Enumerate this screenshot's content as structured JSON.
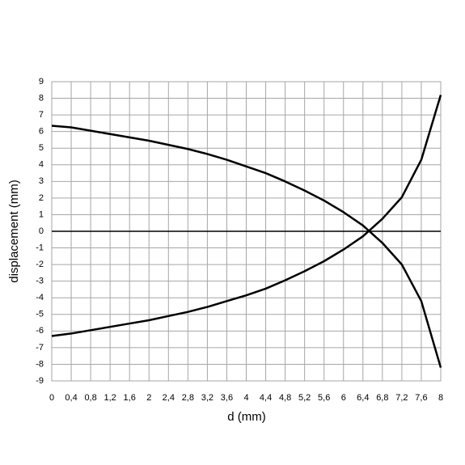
{
  "chart_data": {
    "type": "line",
    "xlabel": "d (mm)",
    "ylabel": "displacement (mm)",
    "x": [
      0,
      0.4,
      0.8,
      1.2,
      1.6,
      2,
      2.4,
      2.8,
      3.2,
      3.6,
      4,
      4.4,
      4.8,
      5.2,
      5.6,
      6,
      6.4,
      6.8,
      7.2,
      7.6,
      8
    ],
    "series": [
      {
        "color": "#000000",
        "values": [
          6.35,
          6.25,
          6.05,
          5.85,
          5.65,
          5.45,
          5.2,
          4.95,
          4.65,
          4.3,
          3.9,
          3.5,
          3.0,
          2.45,
          1.85,
          1.15,
          0.35,
          -0.7,
          -2.0,
          -4.2,
          -8.2
        ]
      },
      {
        "color": "#000000",
        "values": [
          -6.3,
          -6.15,
          -5.95,
          -5.75,
          -5.55,
          -5.35,
          -5.1,
          -4.85,
          -4.55,
          -4.2,
          -3.85,
          -3.45,
          -2.95,
          -2.4,
          -1.8,
          -1.1,
          -0.3,
          0.75,
          2.05,
          4.3,
          8.2
        ]
      }
    ],
    "xlim": [
      0,
      8
    ],
    "xticks": [
      0,
      {
        "value": 0.4,
        "label": "0,4"
      },
      {
        "value": 0.8,
        "label": "0,8"
      },
      {
        "value": 1.2,
        "label": "1,2"
      },
      {
        "value": 1.6,
        "label": "1,6"
      },
      2,
      {
        "value": 2.4,
        "label": "2,4"
      },
      {
        "value": 2.8,
        "label": "2,8"
      },
      {
        "value": 3.2,
        "label": "3,2"
      },
      {
        "value": 3.6,
        "label": "3,6"
      },
      4,
      {
        "value": 4.4,
        "label": "4,4"
      },
      {
        "value": 4.8,
        "label": "4,8"
      },
      {
        "value": 5.2,
        "label": "5,2"
      },
      {
        "value": 5.6,
        "label": "5,6"
      },
      6,
      {
        "value": 6.4,
        "label": "6,4"
      },
      {
        "value": 6.8,
        "label": "6,8"
      },
      {
        "value": 7.2,
        "label": "7,2"
      },
      {
        "value": 7.6,
        "label": "7,6"
      },
      8
    ],
    "ylim": [
      -9,
      9
    ],
    "yticks": [
      -9,
      -8,
      -7,
      -6,
      -5,
      -4,
      -3,
      -2,
      -1,
      0,
      1,
      2,
      3,
      4,
      5,
      6,
      7,
      8,
      9
    ],
    "grid": true
  }
}
